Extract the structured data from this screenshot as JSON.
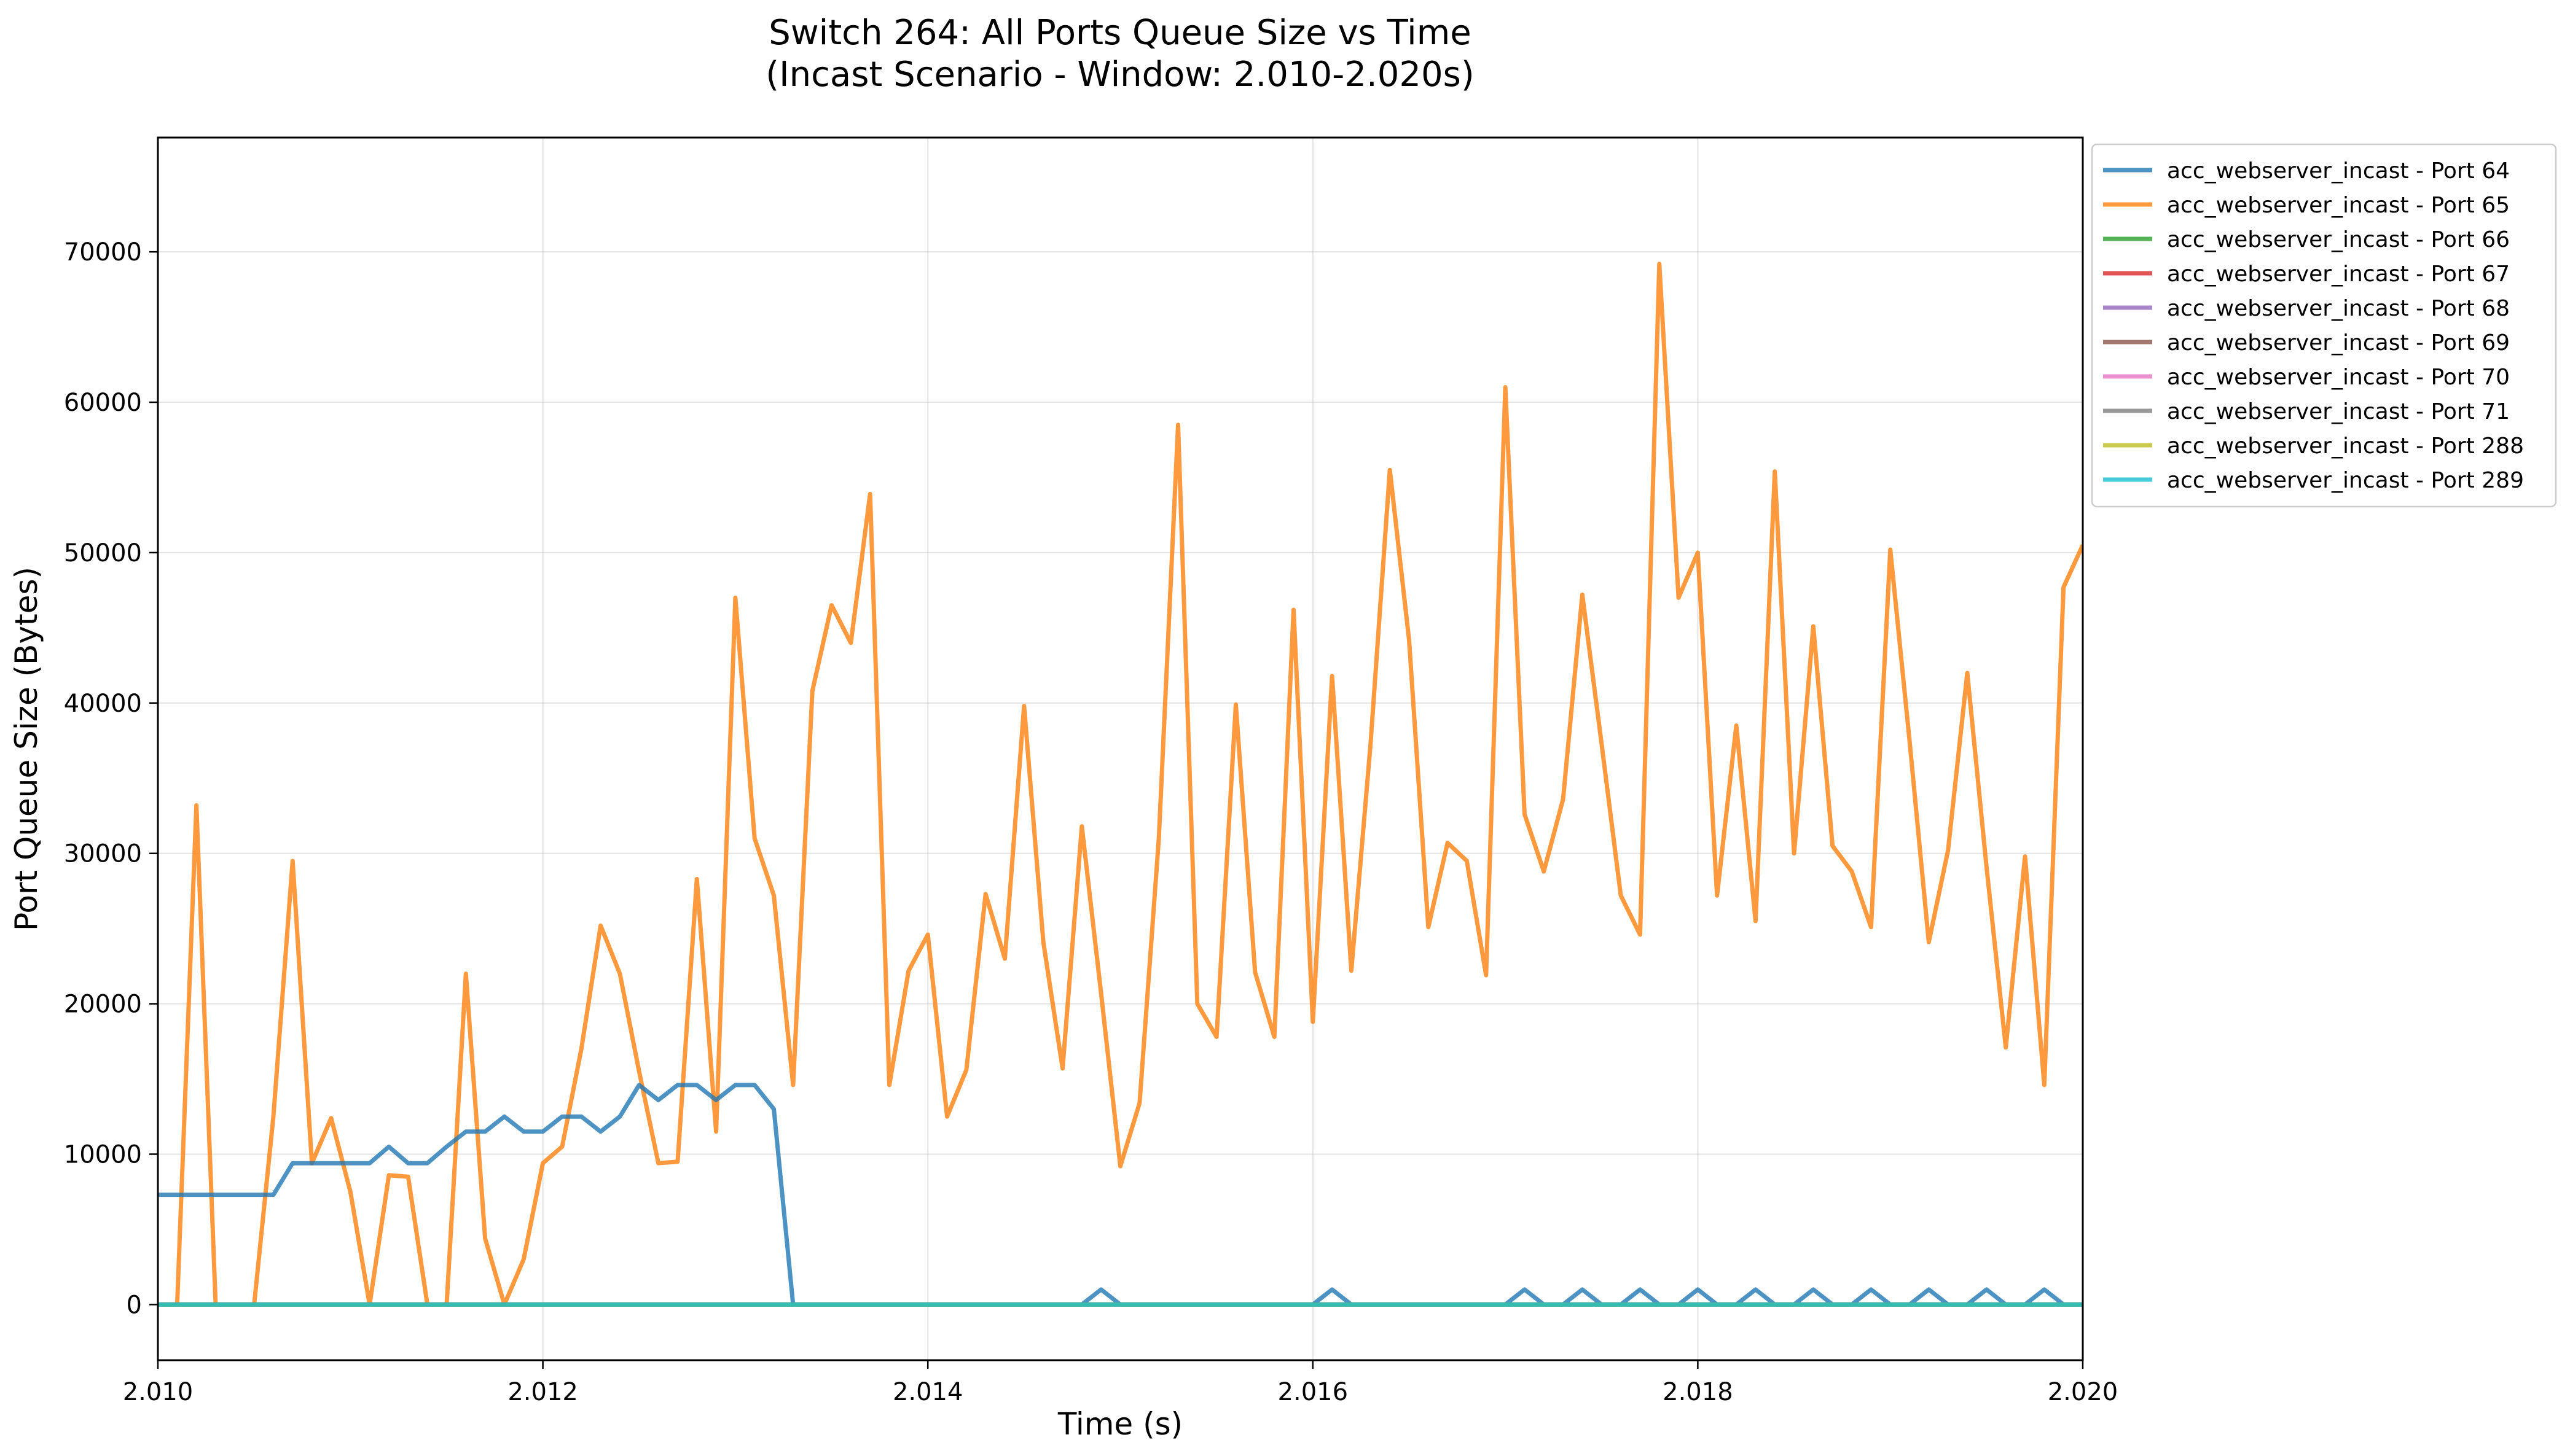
{
  "chart_data": {
    "type": "line",
    "title": "Switch 264: All Ports Queue Size vs Time",
    "subtitle": "(Incast Scenario - Window: 2.010-2.020s)",
    "xlabel": "Time (s)",
    "ylabel": "Port Queue Size (Bytes)",
    "xlim": [
      2.01,
      2.02
    ],
    "ylim": [
      -3700,
      77600
    ],
    "x_ticks": [
      2.01,
      2.012,
      2.014,
      2.016,
      2.018,
      2.02
    ],
    "x_tick_labels": [
      "2.010",
      "2.012",
      "2.014",
      "2.016",
      "2.018",
      "2.020"
    ],
    "y_ticks": [
      0,
      10000,
      20000,
      30000,
      40000,
      50000,
      60000,
      70000
    ],
    "y_tick_labels": [
      "0",
      "10000",
      "20000",
      "30000",
      "40000",
      "50000",
      "60000",
      "70000"
    ],
    "grid": true,
    "legend_position": "outside-upper-right",
    "x": [
      2.01,
      2.0101,
      2.0102,
      2.0103,
      2.0104,
      2.0105,
      2.0106,
      2.0107,
      2.0108,
      2.0109,
      2.011,
      2.0111,
      2.0112,
      2.0113,
      2.0114,
      2.0115,
      2.0116,
      2.0117,
      2.0118,
      2.0119,
      2.012,
      2.0121,
      2.0122,
      2.0123,
      2.0124,
      2.0125,
      2.0126,
      2.0127,
      2.0128,
      2.0129,
      2.013,
      2.0131,
      2.0132,
      2.0133,
      2.0134,
      2.0135,
      2.0136,
      2.0137,
      2.0138,
      2.0139,
      2.014,
      2.0141,
      2.0142,
      2.0143,
      2.0144,
      2.0145,
      2.0146,
      2.0147,
      2.0148,
      2.0149,
      2.015,
      2.0151,
      2.0152,
      2.0153,
      2.0154,
      2.0155,
      2.0156,
      2.0157,
      2.0158,
      2.0159,
      2.016,
      2.0161,
      2.0162,
      2.0163,
      2.0164,
      2.0165,
      2.0166,
      2.0167,
      2.0168,
      2.0169,
      2.017,
      2.0171,
      2.0172,
      2.0173,
      2.0174,
      2.0175,
      2.0176,
      2.0177,
      2.0178,
      2.0179,
      2.018,
      2.0181,
      2.0182,
      2.0183,
      2.0184,
      2.0185,
      2.0186,
      2.0187,
      2.0188,
      2.0189,
      2.019,
      2.0191,
      2.0192,
      2.0193,
      2.0194,
      2.0195,
      2.0196,
      2.0197,
      2.0198,
      2.0199,
      2.02
    ],
    "series": [
      {
        "name": "acc_webserver_incast - Port 64",
        "color": "#1f77b4",
        "values": [
          7300,
          7300,
          7300,
          7300,
          7300,
          7300,
          7300,
          9400,
          9400,
          9400,
          9400,
          9400,
          10500,
          9400,
          9400,
          10500,
          11500,
          11500,
          12500,
          11500,
          11500,
          12500,
          12500,
          11500,
          12500,
          14600,
          13600,
          14600,
          14600,
          13600,
          14600,
          14600,
          13000,
          0,
          0,
          0,
          0,
          0,
          0,
          0,
          0,
          0,
          0,
          0,
          0,
          0,
          0,
          0,
          0,
          1000,
          0,
          0,
          0,
          0,
          0,
          0,
          0,
          0,
          0,
          0,
          0,
          1000,
          0,
          0,
          0,
          0,
          0,
          0,
          0,
          0,
          0,
          1000,
          0,
          0,
          1000,
          0,
          0,
          1000,
          0,
          0,
          1000,
          0,
          0,
          1000,
          0,
          0,
          1000,
          0,
          0,
          1000,
          0,
          0,
          1000,
          0,
          0,
          1000,
          0,
          0,
          1000,
          0,
          0
        ]
      },
      {
        "name": "acc_webserver_incast - Port 65",
        "color": "#ff7f0e",
        "values": [
          0,
          0,
          33200,
          0,
          0,
          0,
          12500,
          29500,
          9400,
          12400,
          7500,
          0,
          8600,
          8500,
          0,
          0,
          22000,
          4400,
          0,
          3000,
          9400,
          10500,
          17000,
          25200,
          22000,
          15500,
          9400,
          9500,
          28300,
          11500,
          47000,
          31000,
          27200,
          14600,
          40800,
          46500,
          44000,
          53900,
          14600,
          22200,
          24600,
          12500,
          15600,
          27300,
          23000,
          39800,
          24100,
          15700,
          31800,
          20700,
          9200,
          13400,
          31000,
          58500,
          20000,
          17800,
          39900,
          22100,
          17800,
          46200,
          18800,
          41800,
          22200,
          37300,
          55500,
          44200,
          25100,
          30700,
          29500,
          21900,
          61000,
          32600,
          28800,
          33600,
          47200,
          37300,
          27200,
          24600,
          69200,
          47000,
          50000,
          27200,
          38500,
          25500,
          55400,
          30000,
          45100,
          30500,
          28800,
          25100,
          50200,
          37500,
          24100,
          30200,
          42000,
          29100,
          17100,
          29800,
          14600,
          47700,
          50500
        ]
      },
      {
        "name": "acc_webserver_incast - Port 66",
        "color": "#2ca02c",
        "values": "zeros"
      },
      {
        "name": "acc_webserver_incast - Port 67",
        "color": "#d62728",
        "values": "zeros"
      },
      {
        "name": "acc_webserver_incast - Port 68",
        "color": "#9467bd",
        "values": "zeros"
      },
      {
        "name": "acc_webserver_incast - Port 69",
        "color": "#8c564b",
        "values": "zeros"
      },
      {
        "name": "acc_webserver_incast - Port 70",
        "color": "#e377c2",
        "values": "zeros"
      },
      {
        "name": "acc_webserver_incast - Port 71",
        "color": "#7f7f7f",
        "values": "zeros"
      },
      {
        "name": "acc_webserver_incast - Port 288",
        "color": "#bcbd22",
        "values": "zeros"
      },
      {
        "name": "acc_webserver_incast - Port 289",
        "color": "#17becf",
        "values": "zeros"
      }
    ]
  }
}
